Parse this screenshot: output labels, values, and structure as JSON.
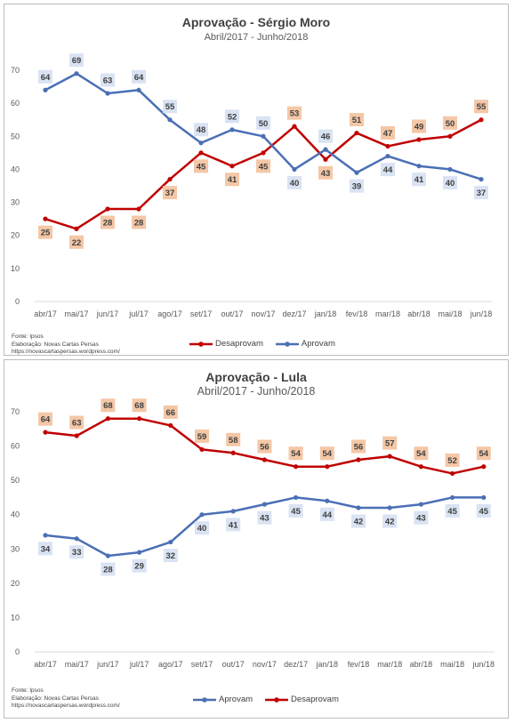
{
  "chart_data": [
    {
      "type": "line",
      "title": "Aprovação - Sérgio Moro",
      "subtitle": "Abril/2017 - Junho/2018",
      "categories": [
        "abr/17",
        "mai/17",
        "jun/17",
        "jul/17",
        "ago/17",
        "set/17",
        "out/17",
        "nov/17",
        "dez/17",
        "jan/18",
        "fev/18",
        "mar/18",
        "abr/18",
        "mai/18",
        "jun/18"
      ],
      "yticks": [
        "0",
        "10",
        "20",
        "30",
        "40",
        "50",
        "60",
        "70"
      ],
      "ylim": [
        0,
        70
      ],
      "grid": false,
      "legend_position": "bottom",
      "series": [
        {
          "name": "Desaprovam",
          "color": "#c00000",
          "label_bg": "#f4c7a7",
          "values": [
            25,
            22,
            28,
            28,
            37,
            45,
            41,
            45,
            53,
            43,
            51,
            47,
            49,
            50,
            55
          ],
          "value_labels": [
            "25",
            "22",
            "28",
            "28",
            "37",
            "45",
            "41",
            "45",
            "53",
            "43",
            "51",
            "47",
            "49",
            "50",
            "55"
          ]
        },
        {
          "name": "Aprovam",
          "color": "#4a6fb5",
          "label_bg": "#d9e3f3",
          "values": [
            64,
            69,
            63,
            64,
            55,
            48,
            52,
            50,
            40,
            46,
            39,
            44,
            41,
            40,
            37
          ],
          "value_labels": [
            "64",
            "69",
            "63",
            "64",
            "55",
            "48",
            "52",
            "50",
            "40",
            "46",
            "39",
            "44",
            "41",
            "40",
            "37"
          ]
        }
      ],
      "legend_order": [
        0,
        1
      ],
      "source_lines": [
        "Fonte: Ipsos",
        "Elaboração: Novas Cartas Persas",
        "https://novascartaspersas.wordpress.com/"
      ]
    },
    {
      "type": "line",
      "title": "Aprovação - Lula",
      "subtitle": "Abril/2017 - Junho/2018",
      "categories": [
        "abr/17",
        "mai/17",
        "jun/17",
        "jul/17",
        "ago/17",
        "set/17",
        "out/17",
        "nov/17",
        "dez/17",
        "jan/18",
        "fev/18",
        "mar/18",
        "abr/18",
        "mai/18",
        "jun/18"
      ],
      "yticks": [
        "0",
        "10",
        "20",
        "30",
        "40",
        "50",
        "60",
        "70"
      ],
      "ylim": [
        0,
        70
      ],
      "grid": false,
      "legend_position": "bottom",
      "series": [
        {
          "name": "Aprovam",
          "color": "#4a6fb5",
          "label_bg": "#d9e3f3",
          "values": [
            34,
            33,
            28,
            29,
            32,
            40,
            41,
            43,
            45,
            44,
            42,
            42,
            43,
            45,
            45
          ],
          "value_labels": [
            "34",
            "33",
            "28",
            "29",
            "32",
            "40",
            "41",
            "43",
            "45",
            "44",
            "42",
            "42",
            "43",
            "45",
            "45"
          ]
        },
        {
          "name": "Desaprovam",
          "color": "#c00000",
          "label_bg": "#f4c7a7",
          "values": [
            64,
            63,
            68,
            68,
            66,
            59,
            58,
            56,
            54,
            54,
            56,
            57,
            54,
            52,
            54
          ],
          "value_labels": [
            "64",
            "63",
            "68",
            "68",
            "66",
            "59",
            "58",
            "56",
            "54",
            "54",
            "56",
            "57",
            "54",
            "52",
            "54"
          ]
        }
      ],
      "legend_order": [
        0,
        1
      ],
      "source_lines": [
        "Fonte: Ipsos",
        "Elaboração: Novas Cartas Persas",
        "https://novascartaspersas.wordpress.com/"
      ]
    }
  ]
}
